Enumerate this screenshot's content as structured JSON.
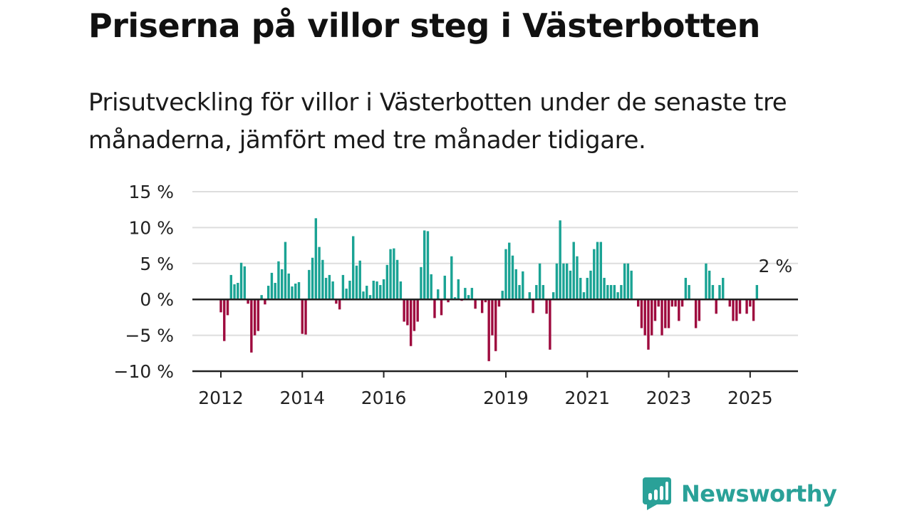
{
  "title": "Priserna på villor steg i Västerbotten",
  "subtitle": "Prisutveckling för villor i Västerbotten under de senaste tre månaderna, jämfört med tre månader tidigare.",
  "brand": {
    "name": "Newsworthy",
    "icon": "newsworthy-bar-chart-icon",
    "color": "#2AA198"
  },
  "colors": {
    "positive": "#1AA394",
    "negative": "#9E0A3E",
    "grid": "#DDDDDD",
    "axis": "#222222"
  },
  "chart_data": {
    "type": "bar",
    "title": "",
    "xlabel": "",
    "ylabel": "",
    "ylim": [
      -10,
      15
    ],
    "y_ticks": [
      15,
      10,
      5,
      0,
      -5,
      -10
    ],
    "y_tick_labels": [
      "15 %",
      "10 %",
      "5 %",
      "0 %",
      "−5 %",
      "−10 %"
    ],
    "x_ticks": [
      "2012",
      "2014",
      "2016",
      "2019",
      "2021",
      "2023",
      "2025"
    ],
    "grid": true,
    "period": "monthly",
    "start": "2012-01",
    "end": "2025-06",
    "end_label": "2 %",
    "series": [
      {
        "values": [
          -1.8,
          -5.8,
          -2.2,
          3.4,
          2.1,
          2.3,
          5.1,
          4.6,
          -0.6,
          -7.4,
          -5.0,
          -4.4,
          0.6,
          -0.7,
          1.9,
          3.7,
          2.3,
          5.3,
          4.2,
          8.0,
          3.6,
          1.8,
          2.2,
          2.4,
          -4.8,
          -4.9,
          4.1,
          5.8,
          11.3,
          7.3,
          5.5,
          3.0,
          3.4,
          2.5,
          -0.6,
          -1.4,
          3.4,
          1.5,
          2.6,
          8.8,
          4.7,
          5.4,
          1.1,
          1.9,
          0.6,
          2.6,
          2.5,
          2.0,
          2.8,
          4.8,
          7.0,
          7.1,
          5.5,
          2.5,
          -3.1,
          -3.6,
          -6.5,
          -4.4,
          -3.1,
          4.5,
          9.6,
          9.5,
          3.5,
          -2.6,
          1.4,
          -2.2,
          3.3,
          -0.4,
          6.0,
          0.3,
          2.8,
          -0.2,
          1.6,
          0.6,
          1.6,
          -1.3,
          0.1,
          -1.9,
          -0.4,
          -8.6,
          -5.0,
          -7.2,
          -1.0,
          1.2,
          7.0,
          7.9,
          6.1,
          4.2,
          2.0,
          3.9,
          0.0,
          1.0,
          -1.9,
          2.0,
          5.0,
          2.0,
          -2.0,
          -7.0,
          1.0,
          5.0,
          11.0,
          5.0,
          5.0,
          4.0,
          8.0,
          6.0,
          3.0,
          1.0,
          3.0,
          4.0,
          7.0,
          8.0,
          8.0,
          3.0,
          2.0,
          2.0,
          2.0,
          1.0,
          2.0,
          5.0,
          5.0,
          4.0,
          0.0,
          -1.0,
          -4.0,
          -5.0,
          -7.0,
          -5.0,
          -3.0,
          -1.0,
          -5.0,
          -4.0,
          -4.0,
          -1.0,
          -1.0,
          -3.0,
          -1.0,
          3.0,
          2.0,
          0.0,
          -4.0,
          -3.0,
          0.0,
          5.0,
          4.0,
          2.0,
          -2.0,
          2.0,
          3.0,
          0.0,
          -1.0,
          -3.0,
          -3.0,
          -2.0,
          0.0,
          -2.0,
          -1.0,
          -3.0,
          2.0
        ]
      }
    ]
  }
}
